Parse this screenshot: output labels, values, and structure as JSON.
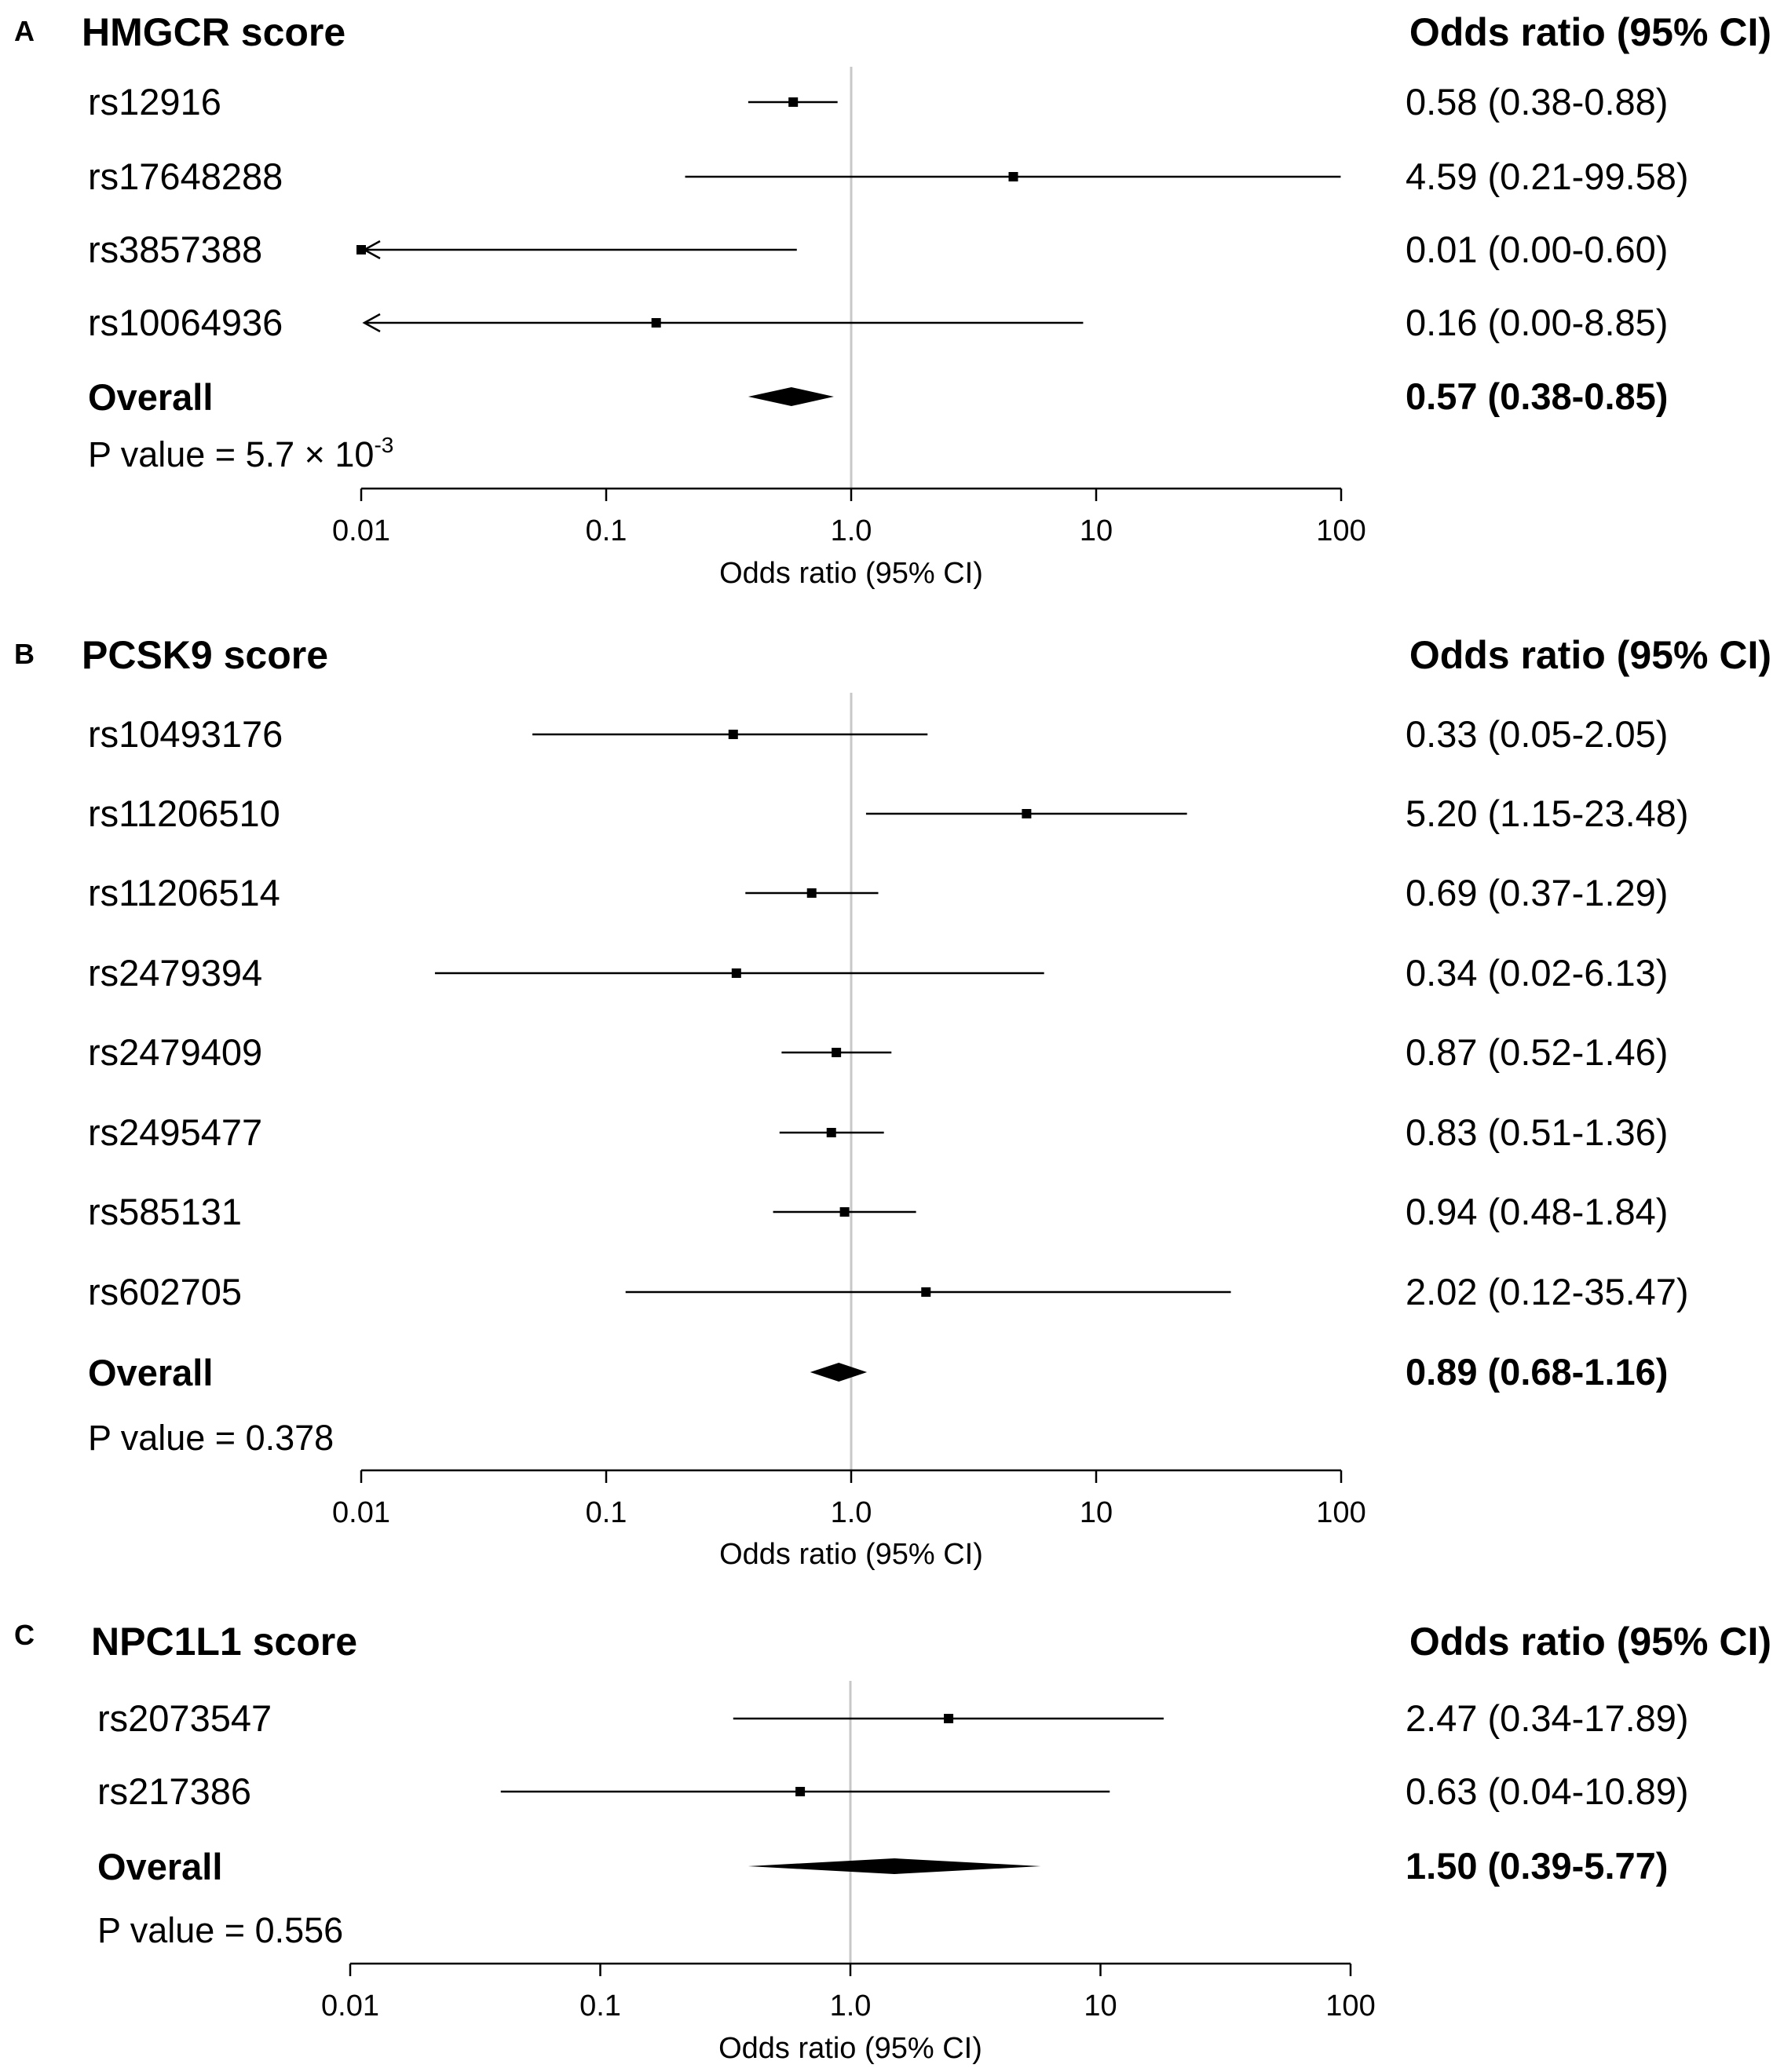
{
  "chart_data": [
    {
      "type": "forest",
      "panel_letter": "A",
      "title": "HMGCR score",
      "column_header": "Odds ratio (95% CI)",
      "xscale": "log10",
      "xlim": [
        0.01,
        100
      ],
      "ticks": [
        0.01,
        0.1,
        1,
        10,
        100
      ],
      "tick_labels": [
        "0.01",
        "0.1",
        "1.0",
        "10",
        "100"
      ],
      "xlabel": "Odds ratio (95% CI)",
      "reference_line": 1,
      "rows": [
        {
          "label": "rs12916",
          "or": 0.58,
          "lo": 0.38,
          "hi": 0.88,
          "text": "0.58 (0.38-0.88)"
        },
        {
          "label": "rs17648288",
          "or": 4.59,
          "lo": 0.21,
          "hi": 99.58,
          "text": "4.59 (0.21-99.58)"
        },
        {
          "label": "rs3857388",
          "or": 0.01,
          "lo": 0.0,
          "hi": 0.6,
          "text": "0.01 (0.00-0.60)",
          "arrow_left": true
        },
        {
          "label": "rs10064936",
          "or": 0.16,
          "lo": 0.0,
          "hi": 8.85,
          "text": "0.16 (0.00-8.85)",
          "arrow_left": true
        }
      ],
      "overall": {
        "label": "Overall",
        "or": 0.57,
        "lo": 0.38,
        "hi": 0.85,
        "text": "0.57 (0.38-0.85)"
      },
      "pvalue": {
        "prefix": "P value = 5.7 × 10",
        "exponent": "-3"
      }
    },
    {
      "type": "forest",
      "panel_letter": "B",
      "title": "PCSK9 score",
      "column_header": "Odds ratio (95% CI)",
      "xscale": "log10",
      "xlim": [
        0.01,
        100
      ],
      "ticks": [
        0.01,
        0.1,
        1,
        10,
        100
      ],
      "tick_labels": [
        "0.01",
        "0.1",
        "1.0",
        "10",
        "100"
      ],
      "xlabel": "Odds ratio (95% CI)",
      "reference_line": 1,
      "rows": [
        {
          "label": "rs10493176",
          "or": 0.33,
          "lo": 0.05,
          "hi": 2.05,
          "text": "0.33 (0.05-2.05)"
        },
        {
          "label": "rs11206510",
          "or": 5.2,
          "lo": 1.15,
          "hi": 23.48,
          "text": "5.20 (1.15-23.48)"
        },
        {
          "label": "rs11206514",
          "or": 0.69,
          "lo": 0.37,
          "hi": 1.29,
          "text": "0.69 (0.37-1.29)"
        },
        {
          "label": "rs2479394",
          "or": 0.34,
          "lo": 0.02,
          "hi": 6.13,
          "text": "0.34 (0.02-6.13)"
        },
        {
          "label": "rs2479409",
          "or": 0.87,
          "lo": 0.52,
          "hi": 1.46,
          "text": "0.87 (0.52-1.46)"
        },
        {
          "label": "rs2495477",
          "or": 0.83,
          "lo": 0.51,
          "hi": 1.36,
          "text": "0.83 (0.51-1.36)"
        },
        {
          "label": "rs585131",
          "or": 0.94,
          "lo": 0.48,
          "hi": 1.84,
          "text": "0.94 (0.48-1.84)"
        },
        {
          "label": "rs602705",
          "or": 2.02,
          "lo": 0.12,
          "hi": 35.47,
          "text": "2.02 (0.12-35.47)"
        }
      ],
      "overall": {
        "label": "Overall",
        "or": 0.89,
        "lo": 0.68,
        "hi": 1.16,
        "text": "0.89 (0.68-1.16)"
      },
      "pvalue": {
        "prefix": "P value = 0.378",
        "exponent": ""
      }
    },
    {
      "type": "forest",
      "panel_letter": "C",
      "title": "NPC1L1 score",
      "column_header": "Odds ratio (95% CI)",
      "xscale": "log10",
      "xlim": [
        0.01,
        100
      ],
      "ticks": [
        0.01,
        0.1,
        1,
        10,
        100
      ],
      "tick_labels": [
        "0.01",
        "0.1",
        "1.0",
        "10",
        "100"
      ],
      "xlabel": "Odds ratio (95% CI)",
      "reference_line": 1,
      "rows": [
        {
          "label": "rs2073547",
          "or": 2.47,
          "lo": 0.34,
          "hi": 17.89,
          "text": "2.47 (0.34-17.89)"
        },
        {
          "label": "rs217386",
          "or": 0.63,
          "lo": 0.04,
          "hi": 10.89,
          "text": "0.63 (0.04-10.89)"
        }
      ],
      "overall": {
        "label": "Overall",
        "or": 1.5,
        "lo": 0.39,
        "hi": 5.77,
        "text": "1.50 (0.39-5.77)"
      },
      "pvalue": {
        "prefix": "P value = 0.556",
        "exponent": ""
      }
    }
  ]
}
